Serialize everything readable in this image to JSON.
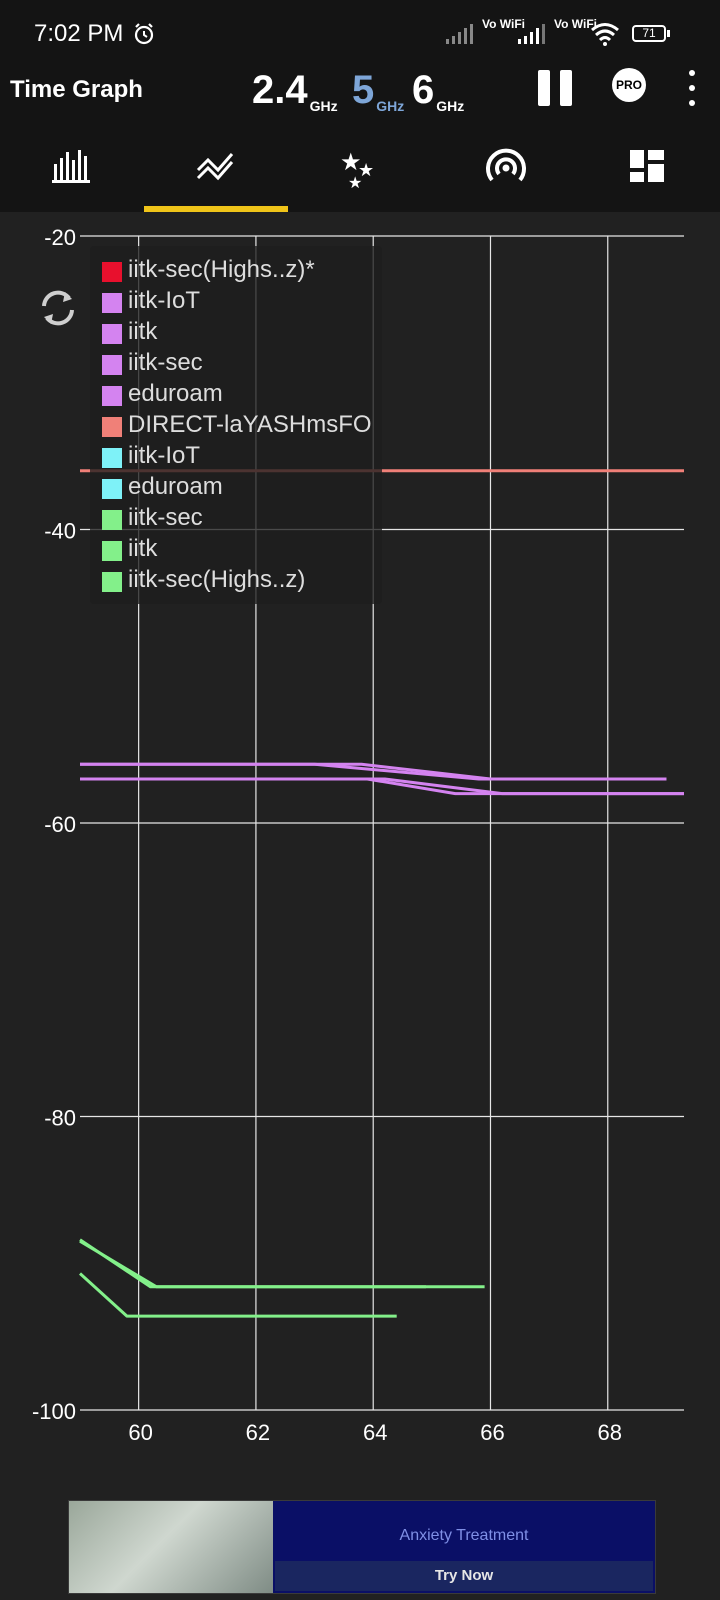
{
  "status_bar": {
    "time": "7:02 PM",
    "vowifi_1": "Vo WiFi",
    "vowifi_2": "Vo WiFi",
    "battery": "71"
  },
  "toolbar": {
    "title": "Time Graph",
    "band_24": "2.4",
    "band_5": "5",
    "band_6": "6",
    "ghz": "GHz",
    "pro": "PRO",
    "active_band_color": "#7ea6d8"
  },
  "tabs": [
    {
      "icon": "bar-chart-icon"
    },
    {
      "icon": "time-graph-icon",
      "selected": true
    },
    {
      "icon": "rating-stars-icon"
    },
    {
      "icon": "access-point-icon"
    },
    {
      "icon": "dashboard-icon"
    }
  ],
  "chart_data": {
    "type": "line",
    "xlim": [
      59,
      69.3
    ],
    "ylim": [
      -100,
      -20
    ],
    "x_ticks": [
      60,
      62,
      64,
      66,
      68
    ],
    "y_ticks": [
      -20,
      -40,
      -60,
      -80,
      -100
    ],
    "grid": true,
    "legend_position": "top-left",
    "series": [
      {
        "name": "iitk-sec(Highs..z)*",
        "color": "#e8102d",
        "points": []
      },
      {
        "name": "iitk-IoT",
        "color": "#d483f0",
        "points": [
          [
            59,
            -57
          ],
          [
            64.2,
            -57
          ],
          [
            66.2,
            -58
          ],
          [
            69.3,
            -58
          ]
        ]
      },
      {
        "name": "iitk",
        "color": "#d483f0",
        "points": [
          [
            59,
            -56
          ],
          [
            63,
            -56
          ],
          [
            65.8,
            -57
          ],
          [
            69,
            -57
          ]
        ]
      },
      {
        "name": "iitk-sec",
        "color": "#d483f0",
        "points": [
          [
            59,
            -57
          ],
          [
            63.9,
            -57
          ],
          [
            65.4,
            -58
          ],
          [
            69.3,
            -58
          ]
        ]
      },
      {
        "name": "eduroam",
        "color": "#d483f0",
        "points": [
          [
            59,
            -56
          ],
          [
            63.8,
            -56
          ],
          [
            66,
            -57
          ],
          [
            69,
            -57
          ]
        ]
      },
      {
        "name": "DIRECT-laYASHmsFO",
        "color": "#f08078",
        "points": [
          [
            59,
            -36
          ],
          [
            69.3,
            -36
          ]
        ]
      },
      {
        "name": "iitk-IoT",
        "color": "#7ef2f8",
        "points": []
      },
      {
        "name": "eduroam",
        "color": "#7ef2f8",
        "points": []
      },
      {
        "name": "iitk-sec",
        "color": "#83f08a",
        "points": [
          [
            59,
            -88.4
          ],
          [
            60.2,
            -91.6
          ],
          [
            65.9,
            -91.6
          ]
        ]
      },
      {
        "name": "iitk",
        "color": "#83f08a",
        "points": [
          [
            59,
            -88.5
          ],
          [
            60.3,
            -91.6
          ],
          [
            64.9,
            -91.6
          ]
        ]
      },
      {
        "name": "iitk-sec(Highs..z)",
        "color": "#83f08a",
        "points": [
          [
            59,
            -90.7
          ],
          [
            59.8,
            -93.6
          ],
          [
            64.4,
            -93.6
          ]
        ]
      }
    ]
  },
  "ad": {
    "title": "Anxiety Treatment",
    "button": "Try Now"
  }
}
